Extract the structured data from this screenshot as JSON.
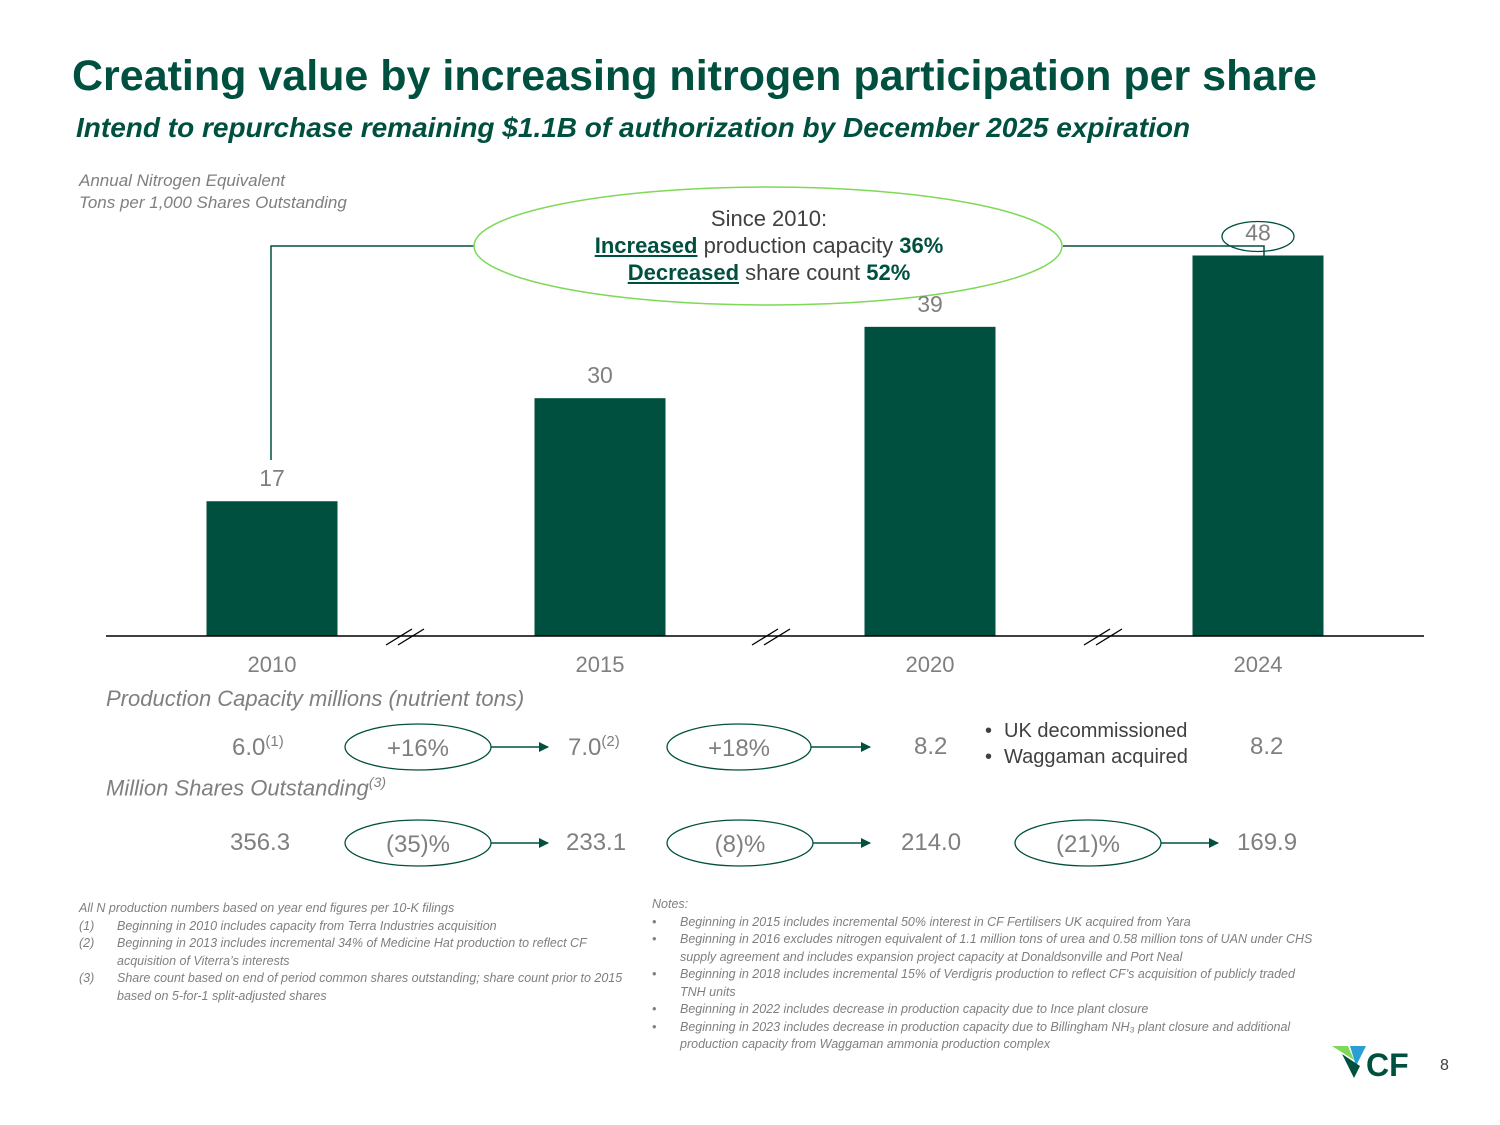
{
  "title": "Creating value by increasing nitrogen participation per share",
  "subtitle": "Intend to repurchase remaining $1.1B of authorization by December 2025 expiration",
  "axis_note": {
    "line1": "Annual Nitrogen Equivalent",
    "line2": "Tons per 1,000 Shares Outstanding"
  },
  "callout": {
    "line1": "Since 2010:",
    "increased_word": "Increased",
    "increased_text": " production capacity ",
    "increased_value": "36%",
    "decreased_word": "Decreased",
    "decreased_text": " share count ",
    "decreased_value": "52%"
  },
  "chart_data": {
    "type": "bar",
    "title": "",
    "ylabel": "Annual Nitrogen Equivalent Tons per 1,000 Shares Outstanding",
    "xlabel": "",
    "categories": [
      "2010",
      "2015",
      "2020",
      "2024"
    ],
    "values": [
      17,
      30,
      39,
      48
    ],
    "ylim": [
      0,
      55
    ],
    "highlighted_label": "48",
    "bar_color": "#005040",
    "axis_breaks": true
  },
  "capacity": {
    "label": "Production Capacity millions (nutrient tons)",
    "values": [
      {
        "value": "6.0",
        "note": "(1)"
      },
      {
        "value": "7.0",
        "note": "(2)"
      },
      {
        "value": "8.2",
        "note": ""
      },
      {
        "value": "8.2",
        "note": ""
      }
    ],
    "changes": [
      "+16%",
      "+18%"
    ],
    "bullets": [
      "UK decommissioned",
      "Waggaman acquired"
    ]
  },
  "shares": {
    "label": "Million Shares Outstanding",
    "label_note": "(3)",
    "values": [
      "356.3",
      "233.1",
      "214.0",
      "169.9"
    ],
    "changes": [
      "(35)%",
      "(8)%",
      "(21)%"
    ]
  },
  "footnotes": {
    "intro": "All N production numbers based on year end figures per 10-K filings",
    "items": [
      {
        "key": "(1)",
        "text": "Beginning in 2010 includes capacity from Terra Industries acquisition"
      },
      {
        "key": "(2)",
        "text": "Beginning in 2013 includes incremental 34% of Medicine Hat production to reflect CF acquisition of Viterra’s interests"
      },
      {
        "key": "(3)",
        "text": "Share count based on end of period common shares outstanding; share count prior to 2015 based on 5-for-1 split-adjusted shares"
      }
    ]
  },
  "notes": {
    "heading": "Notes:",
    "items": [
      "Beginning in 2015 includes incremental 50% interest in CF Fertilisers UK acquired from Yara",
      "Beginning in 2016 excludes nitrogen equivalent of 1.1 million tons of urea and 0.58 million tons of UAN under CHS supply agreement and includes expansion project capacity at Donaldsonville and Port Neal",
      "Beginning in 2018 includes incremental 15% of Verdigris production to reflect CF’s acquisition of publicly traded TNH units",
      "Beginning in 2022 includes decrease in production capacity due to Ince plant closure",
      "Beginning in 2023 includes decrease in production capacity due to Billingham NH₃ plant closure and additional production capacity from Waggaman ammonia production complex"
    ]
  },
  "logo": {
    "text": "CF"
  },
  "page_number": "8",
  "colors": {
    "brand": "#005040",
    "callout_border": "#7ed957"
  }
}
